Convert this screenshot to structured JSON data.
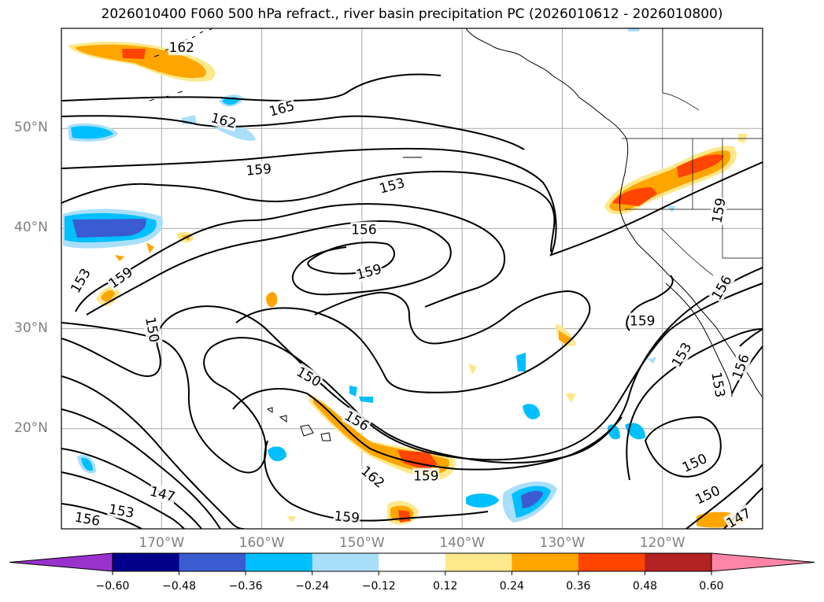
{
  "title": "2026010400 F060 500 hPa refract., river basin precipitation PC (2026010612 - 2026010800)",
  "colors": {
    "land_line": "#000000",
    "grid": "#a8a8a8",
    "axis_label": "#808080"
  },
  "map": {
    "lon_range": [
      -180,
      -110
    ],
    "lat_range": [
      10,
      60
    ],
    "lat_labels": [
      {
        "lat": 50,
        "text": "50°N"
      },
      {
        "lat": 40,
        "text": "40°N"
      },
      {
        "lat": 30,
        "text": "30°N"
      },
      {
        "lat": 20,
        "text": "20°N"
      }
    ],
    "lon_labels": [
      {
        "lon": -170,
        "text": "170°W"
      },
      {
        "lon": -160,
        "text": "160°W"
      },
      {
        "lon": -150,
        "text": "150°W"
      },
      {
        "lon": -140,
        "text": "140°W"
      },
      {
        "lon": -130,
        "text": "130°W"
      },
      {
        "lon": -120,
        "text": "120°W"
      }
    ],
    "contour_labels": [
      {
        "text": "162",
        "lon": -168,
        "lat": 58.1,
        "rot": 0
      },
      {
        "text": "165",
        "lon": -158,
        "lat": 52.0,
        "rot": -15
      },
      {
        "text": "162",
        "lon": -163.8,
        "lat": 50.8,
        "rot": 15
      },
      {
        "text": "159",
        "lon": -160.3,
        "lat": 45.9,
        "rot": -5
      },
      {
        "text": "153",
        "lon": -147,
        "lat": 44.3,
        "rot": -15
      },
      {
        "text": "156",
        "lon": -149.8,
        "lat": 39.9,
        "rot": 0
      },
      {
        "text": "159",
        "lon": -149.3,
        "lat": 35.7,
        "rot": -15
      },
      {
        "text": "153",
        "lon": -178.1,
        "lat": 34.8,
        "rot": -60
      },
      {
        "text": "159",
        "lon": -174.1,
        "lat": 35.1,
        "rot": -35
      },
      {
        "text": "150",
        "lon": -170.9,
        "lat": 29.9,
        "rot": 80
      },
      {
        "text": "150",
        "lon": -155.3,
        "lat": 25.2,
        "rot": 30
      },
      {
        "text": "156",
        "lon": -150.5,
        "lat": 20.8,
        "rot": 30
      },
      {
        "text": "162",
        "lon": -148.9,
        "lat": 15.2,
        "rot": 40
      },
      {
        "text": "159",
        "lon": -143.6,
        "lat": 15.3,
        "rot": 0
      },
      {
        "text": "147",
        "lon": -169.9,
        "lat": 13.5,
        "rot": 15
      },
      {
        "text": "153",
        "lon": -174,
        "lat": 11.8,
        "rot": 10
      },
      {
        "text": "156",
        "lon": -177.4,
        "lat": 11.0,
        "rot": 10
      },
      {
        "text": "159",
        "lon": -151.5,
        "lat": 11.2,
        "rot": 5
      },
      {
        "text": "159",
        "lon": -122,
        "lat": 30.8,
        "rot": 0
      },
      {
        "text": "159",
        "lon": -114.4,
        "lat": 41.8,
        "rot": -80
      },
      {
        "text": "156",
        "lon": -114.1,
        "lat": 34.1,
        "rot": -60
      },
      {
        "text": "153",
        "lon": -118.1,
        "lat": 27.4,
        "rot": -60
      },
      {
        "text": "153",
        "lon": -114.4,
        "lat": 24.4,
        "rot": 80
      },
      {
        "text": "156",
        "lon": -112.2,
        "lat": 26.2,
        "rot": -70
      },
      {
        "text": "150",
        "lon": -116.8,
        "lat": 16.6,
        "rot": -25
      },
      {
        "text": "150",
        "lon": -115.5,
        "lat": 13.4,
        "rot": -25
      },
      {
        "text": "147",
        "lon": -112.4,
        "lat": 11.1,
        "rot": -30
      }
    ]
  },
  "colorbar": {
    "levels": [
      -0.6,
      -0.48,
      -0.36,
      -0.24,
      -0.12,
      0.12,
      0.24,
      0.36,
      0.48,
      0.6
    ],
    "labels": [
      "−0.60",
      "−0.48",
      "−0.36",
      "−0.24",
      "−0.12",
      "0.12",
      "0.24",
      "0.36",
      "0.48",
      "0.60"
    ],
    "colors": [
      "#9932cc",
      "#00008b",
      "#3b5bd1",
      "#00bfff",
      "#aadff9",
      "#ffffff",
      "#fde88c",
      "#ffa500",
      "#ff4500",
      "#b22222",
      "#ff85a6"
    ]
  }
}
